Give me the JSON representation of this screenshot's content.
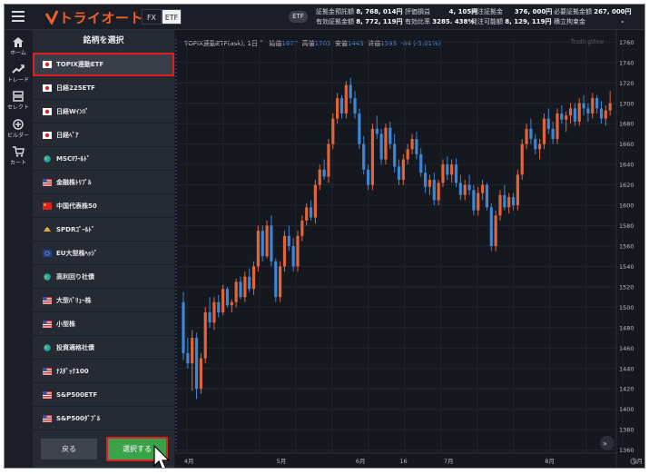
{
  "header": {
    "logo": "トライオート",
    "mode_tabs": [
      "FX",
      "ETF"
    ],
    "active_tab": "ETF",
    "pill": "ETF",
    "stats": [
      [
        {
          "label": "証拠金預託額",
          "value": "8, 768, 014円"
        },
        {
          "label": "有効証拠金額",
          "value": "8, 772, 119円"
        }
      ],
      [
        {
          "label": "評価損益",
          "value": "4, 105円"
        },
        {
          "label": "有効比率",
          "value": "3285. 438%"
        }
      ],
      [
        {
          "label": "発注証拠金",
          "value": "376, 000円"
        },
        {
          "label": "発注可能額",
          "value": "8, 129, 119円"
        }
      ],
      [
        {
          "label": "必要証拠金額",
          "value": "267, 000円"
        },
        {
          "label": "積立拘束金",
          "value": "-"
        }
      ]
    ]
  },
  "nav": [
    {
      "label": "ホーム",
      "icon": "home-icon"
    },
    {
      "label": "トレード",
      "icon": "trade-icon"
    },
    {
      "label": "セレクト",
      "icon": "select-icon"
    },
    {
      "label": "ビルダー",
      "icon": "builder-icon"
    },
    {
      "label": "カート",
      "icon": "cart-icon"
    }
  ],
  "panel": {
    "title": "銘柄を選択",
    "items": [
      {
        "label": "TOPIX連動ETF",
        "flag": "jp",
        "selected": true
      },
      {
        "label": "日経225ETF",
        "flag": "jp"
      },
      {
        "label": "日経Wｲﾝﾊﾞ",
        "flag": "jp"
      },
      {
        "label": "日経ﾍﾞｱ",
        "flag": "jp"
      },
      {
        "label": "MSCIﾜｰﾙﾄﾞ",
        "flag": "globe"
      },
      {
        "label": "金融株ﾄﾘﾌﾟﾙ",
        "flag": "us"
      },
      {
        "label": "中国代表株50",
        "flag": "cn"
      },
      {
        "label": "SPDRｺﾞｰﾙﾄﾞ",
        "flag": "gold"
      },
      {
        "label": "EU大型株ﾍｯｼﾞ",
        "flag": "eu"
      },
      {
        "label": "高利回り社債",
        "flag": "globe"
      },
      {
        "label": "大型ﾊﾞﾘｭｰ株",
        "flag": "us"
      },
      {
        "label": "小型株",
        "flag": "us"
      },
      {
        "label": "投資適格社債",
        "flag": "globe"
      },
      {
        "label": "ﾅｽﾀﾞｯｸ100",
        "flag": "us"
      },
      {
        "label": "S&P500ETF",
        "flag": "us"
      },
      {
        "label": "S&P500ﾀﾞﾌﾞﾙ",
        "flag": "us"
      }
    ],
    "back_label": "戻る",
    "select_label": "選択する"
  },
  "chart_header": {
    "symbol": "TOPIX連動ETF(ask), 1日",
    "open_label": "始値",
    "open": "1677",
    "high_label": "高値",
    "high": "1705",
    "low_label": "安値",
    "low": "1443",
    "close_label": "終値",
    "close": "1593",
    "change": "-84 (-5.01%)",
    "watermark": "TradingView"
  },
  "chart_data": {
    "type": "candlestick",
    "up_color": "#e2653a",
    "down_color": "#3d86d4",
    "y_ticks": [
      1360,
      1380,
      1400,
      1420,
      1440,
      1460,
      1480,
      1500,
      1520,
      1540,
      1560,
      1580,
      1600,
      1620,
      1640,
      1660,
      1680,
      1700,
      1720,
      1740,
      1760
    ],
    "ylim": [
      1357,
      1763
    ],
    "x_labels": [
      "4月",
      "5月",
      "6月",
      "16",
      "7月",
      "8月",
      "9月"
    ],
    "x_label_index": [
      1,
      22,
      40,
      50,
      60,
      83,
      103
    ],
    "candles": [
      [
        1505,
        1515,
        1448,
        1455
      ],
      [
        1455,
        1470,
        1440,
        1445
      ],
      [
        1445,
        1478,
        1418,
        1470
      ],
      [
        1470,
        1475,
        1410,
        1420
      ],
      [
        1420,
        1455,
        1415,
        1450
      ],
      [
        1450,
        1500,
        1445,
        1495
      ],
      [
        1495,
        1510,
        1480,
        1485
      ],
      [
        1485,
        1510,
        1478,
        1505
      ],
      [
        1505,
        1512,
        1490,
        1495
      ],
      [
        1495,
        1522,
        1492,
        1518
      ],
      [
        1518,
        1520,
        1500,
        1502
      ],
      [
        1502,
        1508,
        1495,
        1505
      ],
      [
        1505,
        1528,
        1500,
        1525
      ],
      [
        1525,
        1530,
        1508,
        1510
      ],
      [
        1510,
        1535,
        1505,
        1530
      ],
      [
        1530,
        1538,
        1515,
        1518
      ],
      [
        1518,
        1545,
        1512,
        1540
      ],
      [
        1540,
        1580,
        1535,
        1575
      ],
      [
        1575,
        1580,
        1545,
        1550
      ],
      [
        1550,
        1585,
        1548,
        1580
      ],
      [
        1580,
        1590,
        1540,
        1545
      ],
      [
        1545,
        1548,
        1505,
        1510
      ],
      [
        1510,
        1545,
        1505,
        1540
      ],
      [
        1540,
        1575,
        1535,
        1570
      ],
      [
        1570,
        1580,
        1555,
        1560
      ],
      [
        1560,
        1568,
        1535,
        1540
      ],
      [
        1540,
        1575,
        1535,
        1570
      ],
      [
        1570,
        1590,
        1565,
        1585
      ],
      [
        1585,
        1602,
        1580,
        1598
      ],
      [
        1598,
        1605,
        1585,
        1588
      ],
      [
        1588,
        1625,
        1582,
        1620
      ],
      [
        1620,
        1640,
        1615,
        1635
      ],
      [
        1635,
        1645,
        1625,
        1628
      ],
      [
        1628,
        1665,
        1622,
        1660
      ],
      [
        1660,
        1690,
        1655,
        1685
      ],
      [
        1685,
        1710,
        1680,
        1705
      ],
      [
        1705,
        1708,
        1685,
        1690
      ],
      [
        1690,
        1722,
        1685,
        1718
      ],
      [
        1718,
        1725,
        1700,
        1705
      ],
      [
        1705,
        1712,
        1685,
        1690
      ],
      [
        1690,
        1695,
        1655,
        1660
      ],
      [
        1660,
        1668,
        1630,
        1635
      ],
      [
        1635,
        1640,
        1615,
        1620
      ],
      [
        1620,
        1680,
        1615,
        1675
      ],
      [
        1675,
        1688,
        1665,
        1670
      ],
      [
        1670,
        1675,
        1640,
        1645
      ],
      [
        1645,
        1680,
        1640,
        1676
      ],
      [
        1676,
        1682,
        1655,
        1660
      ],
      [
        1660,
        1670,
        1632,
        1638
      ],
      [
        1638,
        1645,
        1620,
        1625
      ],
      [
        1625,
        1650,
        1620,
        1645
      ],
      [
        1645,
        1660,
        1640,
        1655
      ],
      [
        1655,
        1670,
        1650,
        1665
      ],
      [
        1665,
        1672,
        1645,
        1650
      ],
      [
        1650,
        1656,
        1628,
        1632
      ],
      [
        1632,
        1640,
        1612,
        1618
      ],
      [
        1618,
        1630,
        1610,
        1625
      ],
      [
        1625,
        1632,
        1600,
        1605
      ],
      [
        1605,
        1625,
        1600,
        1622
      ],
      [
        1622,
        1645,
        1618,
        1640
      ],
      [
        1640,
        1648,
        1625,
        1630
      ],
      [
        1630,
        1645,
        1622,
        1640
      ],
      [
        1640,
        1646,
        1618,
        1622
      ],
      [
        1622,
        1630,
        1605,
        1610
      ],
      [
        1610,
        1625,
        1605,
        1620
      ],
      [
        1620,
        1630,
        1610,
        1615
      ],
      [
        1615,
        1620,
        1590,
        1595
      ],
      [
        1595,
        1618,
        1590,
        1612
      ],
      [
        1612,
        1625,
        1605,
        1620
      ],
      [
        1620,
        1622,
        1595,
        1598
      ],
      [
        1598,
        1602,
        1555,
        1560
      ],
      [
        1560,
        1595,
        1555,
        1590
      ],
      [
        1590,
        1615,
        1585,
        1610
      ],
      [
        1610,
        1620,
        1595,
        1598
      ],
      [
        1598,
        1612,
        1592,
        1608
      ],
      [
        1608,
        1612,
        1595,
        1600
      ],
      [
        1600,
        1635,
        1595,
        1630
      ],
      [
        1630,
        1665,
        1625,
        1660
      ],
      [
        1660,
        1680,
        1655,
        1675
      ],
      [
        1675,
        1685,
        1660,
        1665
      ],
      [
        1665,
        1670,
        1650,
        1655
      ],
      [
        1655,
        1665,
        1645,
        1660
      ],
      [
        1660,
        1690,
        1655,
        1685
      ],
      [
        1685,
        1695,
        1670,
        1675
      ],
      [
        1675,
        1682,
        1660,
        1665
      ],
      [
        1665,
        1695,
        1660,
        1690
      ],
      [
        1690,
        1698,
        1680,
        1684
      ],
      [
        1684,
        1692,
        1672,
        1688
      ],
      [
        1688,
        1700,
        1680,
        1695
      ],
      [
        1695,
        1700,
        1678,
        1682
      ],
      [
        1682,
        1705,
        1678,
        1700
      ],
      [
        1700,
        1708,
        1688,
        1695
      ],
      [
        1695,
        1700,
        1682,
        1690
      ],
      [
        1690,
        1710,
        1685,
        1705
      ],
      [
        1705,
        1708,
        1690,
        1695
      ],
      [
        1695,
        1702,
        1680,
        1685
      ],
      [
        1685,
        1698,
        1678,
        1693
      ],
      [
        1693,
        1712,
        1688,
        1700
      ]
    ]
  }
}
